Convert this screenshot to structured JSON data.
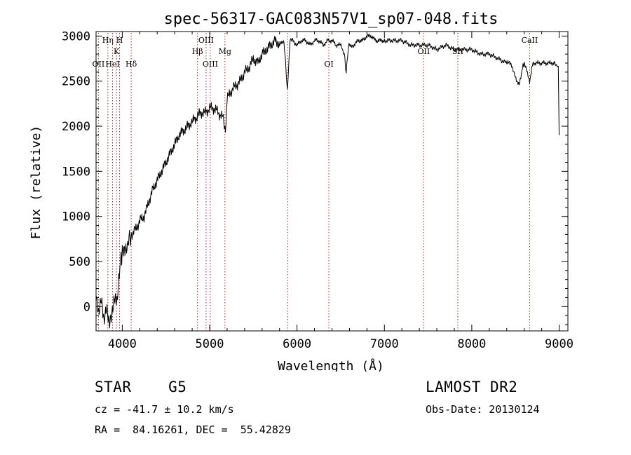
{
  "chart_data": {
    "type": "line",
    "title": "spec-56317-GAC083N57V1_sp07-048.fits",
    "xlabel": "Wavelength (Å)",
    "ylabel": "Flux (relative)",
    "xlim": [
      3700,
      9100
    ],
    "ylim": [
      -270,
      3050
    ],
    "xticks": [
      4000,
      5000,
      6000,
      7000,
      8000,
      9000
    ],
    "yticks": [
      0,
      500,
      1000,
      1500,
      2000,
      2500,
      3000
    ],
    "grid": false,
    "line_color": "#000000",
    "marker_color": "#b22222",
    "series": [
      {
        "x": [
          3700,
          3730,
          3760,
          3790,
          3820,
          3850,
          3880,
          3910,
          3940,
          3960,
          3980,
          4000,
          4030,
          4060,
          4100,
          4150,
          4200,
          4250,
          4300,
          4350,
          4400,
          4450,
          4500,
          4550,
          4600,
          4650,
          4700,
          4750,
          4800,
          4850,
          4900,
          4950,
          5000,
          5050,
          5100,
          5150,
          5180,
          5200,
          5250,
          5300,
          5350,
          5400,
          5450,
          5500,
          5550,
          5600,
          5650,
          5700,
          5750,
          5800,
          5850,
          5890,
          5920,
          5950,
          6000,
          6050,
          6100,
          6150,
          6200,
          6250,
          6300,
          6350,
          6400,
          6450,
          6500,
          6540,
          6563,
          6590,
          6650,
          6700,
          6750,
          6800,
          6850,
          6900,
          6950,
          7000,
          7100,
          7200,
          7300,
          7400,
          7500,
          7600,
          7700,
          7800,
          7900,
          8000,
          8100,
          8200,
          8300,
          8400,
          8450,
          8498,
          8542,
          8580,
          8600,
          8662,
          8700,
          8750,
          8800,
          8850,
          8900,
          8950,
          8990,
          9000
        ],
        "y": [
          150,
          -100,
          50,
          -200,
          0,
          -150,
          -50,
          100,
          50,
          300,
          500,
          600,
          650,
          700,
          800,
          850,
          950,
          1000,
          1150,
          1300,
          1400,
          1500,
          1600,
          1700,
          1800,
          1900,
          1950,
          2000,
          2050,
          2100,
          2150,
          2150,
          2200,
          2200,
          2150,
          2100,
          1900,
          2300,
          2400,
          2450,
          2500,
          2600,
          2650,
          2750,
          2700,
          2800,
          2850,
          2900,
          2950,
          2900,
          2950,
          2400,
          2950,
          2950,
          2900,
          2950,
          2950,
          2900,
          2950,
          2950,
          2900,
          2950,
          2950,
          2900,
          2900,
          2800,
          2600,
          2900,
          2900,
          2950,
          2950,
          3000,
          3000,
          2950,
          2950,
          2950,
          2950,
          2950,
          2900,
          2900,
          2900,
          2850,
          2900,
          2850,
          2850,
          2850,
          2800,
          2800,
          2750,
          2700,
          2700,
          2550,
          2450,
          2650,
          2700,
          2500,
          2700,
          2700,
          2700,
          2700,
          2700,
          2700,
          2650,
          1900
        ]
      }
    ],
    "lines": [
      {
        "label": "OII",
        "x": 3727,
        "row": 3
      },
      {
        "label": "Hη",
        "x": 3835,
        "row": 1
      },
      {
        "label": "HeI",
        "x": 3889,
        "row": 3
      },
      {
        "label": "K",
        "x": 3934,
        "row": 2
      },
      {
        "label": "H",
        "x": 3969,
        "row": 1
      },
      {
        "label": "Hδ",
        "x": 4102,
        "row": 3
      },
      {
        "label": "Hβ",
        "x": 4861,
        "row": 2
      },
      {
        "label": "OIII",
        "x": 4959,
        "row": 1
      },
      {
        "label": "OIII",
        "x": 5007,
        "row": 3
      },
      {
        "label": "Mg",
        "x": 5175,
        "row": 2
      },
      {
        "label": "",
        "x": 5893,
        "row": 0
      },
      {
        "label": "OI",
        "x": 6364,
        "row": 3
      },
      {
        "label": "OII",
        "x": 7450,
        "row": 2
      },
      {
        "label": "SII",
        "x": 7840,
        "row": 2
      },
      {
        "label": "CaII",
        "x": 8662,
        "row": 1
      }
    ]
  },
  "info": {
    "class_line": "STAR    G5",
    "survey": "LAMOST DR2",
    "redshift": "cz = -41.7 ± 10.2 km/s",
    "obs_date": "Obs-Date: 20130124",
    "coords": "RA =  84.16261, DEC =  55.42829"
  }
}
